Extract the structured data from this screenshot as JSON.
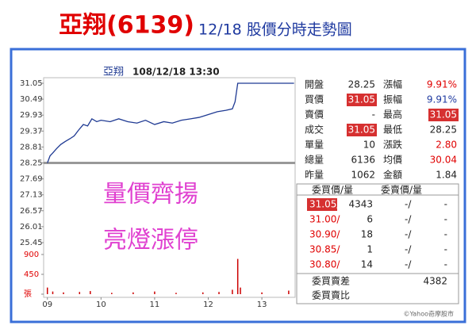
{
  "header": {
    "title": "亞翔(6139)",
    "subtitle": "12/18 股價分時走勢圖"
  },
  "chart_data": {
    "type": "line",
    "title": "亞翔",
    "timestamp": "108/12/18 13:30",
    "annotations": [
      "量價齊揚",
      "亮燈漲停"
    ],
    "x": [
      9.0,
      9.05,
      9.1,
      9.17,
      9.25,
      9.33,
      9.42,
      9.5,
      9.58,
      9.67,
      9.75,
      9.83,
      9.92,
      10.0,
      10.17,
      10.33,
      10.5,
      10.67,
      10.83,
      11.0,
      11.17,
      11.33,
      11.5,
      11.67,
      11.83,
      12.0,
      12.17,
      12.33,
      12.45,
      12.5,
      12.55,
      13.6
    ],
    "series": [
      {
        "name": "成交價",
        "color": "#1f3a93",
        "values": [
          28.25,
          28.5,
          28.6,
          28.75,
          28.9,
          29.0,
          29.1,
          29.2,
          29.4,
          29.6,
          29.55,
          29.8,
          29.7,
          29.75,
          29.7,
          29.8,
          29.7,
          29.65,
          29.75,
          29.6,
          29.7,
          29.65,
          29.75,
          29.8,
          29.85,
          29.95,
          30.05,
          30.1,
          30.15,
          30.4,
          31.05,
          31.05
        ]
      }
    ],
    "reference_line": 28.25,
    "xlim": [
      8.93,
      13.62
    ],
    "xticks": [
      {
        "value": 9,
        "label": "09"
      },
      10,
      11,
      12,
      13
    ],
    "ylim": [
      25.45,
      31.05
    ],
    "yticks": [
      31.05,
      30.49,
      29.93,
      29.37,
      28.81,
      28.25,
      27.69,
      27.13,
      26.57,
      26.01,
      25.45
    ],
    "volume": {
      "color": "#cc0000",
      "x": [
        9.0,
        9.1,
        9.3,
        9.6,
        9.8,
        10.2,
        10.6,
        11.0,
        11.4,
        11.9,
        12.2,
        12.45,
        12.55,
        12.6,
        13.0,
        13.5
      ],
      "values": [
        150,
        60,
        40,
        50,
        70,
        30,
        40,
        60,
        30,
        40,
        50,
        100,
        800,
        150,
        40,
        80
      ],
      "ylim": [
        0,
        900
      ],
      "yticks": [
        {
          "value": 0,
          "label": "張"
        },
        450,
        900
      ]
    }
  },
  "quote_table": [
    [
      "開盤",
      "28.25",
      "漲幅",
      "9.91%"
    ],
    [
      "買價",
      "31.05",
      "振幅",
      "9.91%"
    ],
    [
      "賣價",
      "-",
      "最高",
      "31.05"
    ],
    [
      "成交",
      "31.05",
      "最低",
      "28.25"
    ],
    [
      "單量",
      "10",
      "漲跌",
      "2.80"
    ],
    [
      "總量",
      "6136",
      "均價",
      "30.04"
    ],
    [
      "昨量",
      "1062",
      "金額",
      "1.84"
    ]
  ],
  "order_book": {
    "headers": [
      "委買價/量",
      "委賣價/量"
    ],
    "rows": [
      [
        "31.05/",
        "4343",
        "-/",
        "-"
      ],
      [
        "31.00/",
        "6",
        "-/",
        "-"
      ],
      [
        "30.90/",
        "18",
        "-/",
        "-"
      ],
      [
        "30.85/",
        "1",
        "-/",
        "-"
      ],
      [
        "30.80/",
        "14",
        "-/",
        "-"
      ]
    ],
    "diff_label": "委買賣差",
    "diff_value": "4382",
    "ratio_label": "委買賣比"
  },
  "footer": "©Yahoo奇摩股市"
}
